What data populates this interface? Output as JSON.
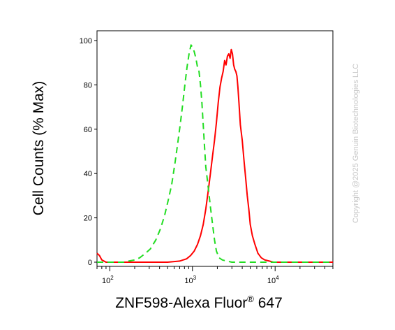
{
  "chart_data": {
    "type": "line",
    "title": "",
    "xlabel": "ZNF598-Alexa Fluor",
    "xlabel_superscript": "®",
    "xlabel_suffix": " 647",
    "ylabel": "Cell Counts (% Max)",
    "x_scale": "log",
    "xlim": [
      70,
      50000
    ],
    "ylim": [
      0,
      100
    ],
    "y_ticks": [
      0,
      20,
      40,
      60,
      80,
      100
    ],
    "x_ticks": [
      {
        "base": "10",
        "exp": "2",
        "value": 100
      },
      {
        "base": "10",
        "exp": "3",
        "value": 1000
      },
      {
        "base": "10",
        "exp": "4",
        "value": 10000
      }
    ],
    "grid": false,
    "legend": "none",
    "series": [
      {
        "color": "#ff0000",
        "style": "solid",
        "points": [
          [
            70,
            4
          ],
          [
            75,
            3
          ],
          [
            80,
            1
          ],
          [
            90,
            0
          ],
          [
            150,
            0
          ],
          [
            300,
            0
          ],
          [
            500,
            0
          ],
          [
            700,
            0.5
          ],
          [
            850,
            1.5
          ],
          [
            950,
            3
          ],
          [
            1050,
            5
          ],
          [
            1150,
            8
          ],
          [
            1250,
            12
          ],
          [
            1350,
            17
          ],
          [
            1450,
            24
          ],
          [
            1550,
            32
          ],
          [
            1650,
            40
          ],
          [
            1750,
            48
          ],
          [
            1850,
            55
          ],
          [
            1950,
            63
          ],
          [
            2050,
            72
          ],
          [
            2150,
            79
          ],
          [
            2250,
            83
          ],
          [
            2350,
            86
          ],
          [
            2450,
            91
          ],
          [
            2550,
            89
          ],
          [
            2650,
            93
          ],
          [
            2750,
            94
          ],
          [
            2850,
            92
          ],
          [
            2950,
            96
          ],
          [
            3050,
            94
          ],
          [
            3150,
            89
          ],
          [
            3250,
            87
          ],
          [
            3350,
            86
          ],
          [
            3450,
            84
          ],
          [
            3550,
            79
          ],
          [
            3650,
            72
          ],
          [
            3800,
            62
          ],
          [
            4000,
            55
          ],
          [
            4200,
            46
          ],
          [
            4400,
            38
          ],
          [
            4600,
            30
          ],
          [
            4800,
            24
          ],
          [
            5000,
            17
          ],
          [
            5300,
            12
          ],
          [
            5700,
            8
          ],
          [
            6200,
            4
          ],
          [
            6800,
            2
          ],
          [
            7500,
            1
          ],
          [
            8500,
            0.5
          ],
          [
            9500,
            0
          ],
          [
            20000,
            0
          ],
          [
            50000,
            0
          ]
        ]
      },
      {
        "color": "#22dd22",
        "style": "dashed",
        "points": [
          [
            70,
            0
          ],
          [
            150,
            0
          ],
          [
            170,
            0.5
          ],
          [
            200,
            1
          ],
          [
            230,
            2
          ],
          [
            270,
            4
          ],
          [
            310,
            6
          ],
          [
            360,
            10
          ],
          [
            410,
            15
          ],
          [
            460,
            21
          ],
          [
            510,
            28
          ],
          [
            560,
            35
          ],
          [
            610,
            44
          ],
          [
            660,
            53
          ],
          [
            710,
            62
          ],
          [
            760,
            71
          ],
          [
            810,
            80
          ],
          [
            860,
            88
          ],
          [
            910,
            94
          ],
          [
            960,
            98
          ],
          [
            1000,
            97
          ],
          [
            1050,
            95
          ],
          [
            1100,
            92
          ],
          [
            1150,
            88
          ],
          [
            1200,
            86
          ],
          [
            1250,
            80
          ],
          [
            1300,
            72
          ],
          [
            1350,
            62
          ],
          [
            1400,
            52
          ],
          [
            1450,
            43
          ],
          [
            1550,
            34
          ],
          [
            1650,
            25
          ],
          [
            1750,
            17
          ],
          [
            1850,
            10
          ],
          [
            1950,
            5
          ],
          [
            2100,
            2
          ],
          [
            2300,
            1
          ],
          [
            2600,
            0.5
          ],
          [
            3000,
            0
          ],
          [
            50000,
            0
          ]
        ]
      }
    ]
  },
  "watermark": "Copyright @2025 Genuin Biotechnologies LLC"
}
